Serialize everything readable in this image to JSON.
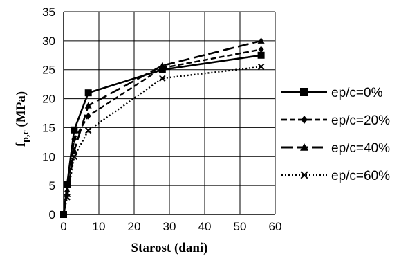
{
  "chart_data": {
    "type": "line",
    "title": "",
    "xlabel": "Starost (dani)",
    "ylabel_main": "f",
    "ylabel_sub": "p,c",
    "ylabel_unit": " (MPa)",
    "xlim": [
      0,
      60
    ],
    "ylim": [
      0,
      35
    ],
    "xticks": [
      "0",
      "10",
      "20",
      "30",
      "40",
      "50",
      "60"
    ],
    "yticks": [
      "0",
      "5",
      "10",
      "15",
      "20",
      "25",
      "30",
      "35"
    ],
    "grid": true,
    "legend_position": "right",
    "series": [
      {
        "name": "ep/c=0%",
        "marker": "square",
        "dash": "solid",
        "x": [
          0,
          1,
          3,
          7,
          28,
          56
        ],
        "y": [
          0,
          5.2,
          14.6,
          21.0,
          25.0,
          27.5
        ]
      },
      {
        "name": "ep/c=20%",
        "marker": "diamond",
        "dash": "short-dash",
        "x": [
          0,
          1,
          3,
          7,
          28,
          56
        ],
        "y": [
          0,
          4.0,
          13.0,
          17.0,
          25.3,
          28.5
        ]
      },
      {
        "name": "ep/c=40%",
        "marker": "triangle",
        "dash": "long-dash",
        "x": [
          0,
          1,
          3,
          7,
          28,
          56
        ],
        "y": [
          0,
          3.5,
          11.0,
          18.8,
          25.7,
          30.0
        ]
      },
      {
        "name": "ep/c=60%",
        "marker": "x",
        "dash": "dotted",
        "x": [
          0,
          1,
          3,
          7,
          28,
          56
        ],
        "y": [
          0,
          3.0,
          10.0,
          14.5,
          23.5,
          25.5
        ]
      }
    ]
  }
}
